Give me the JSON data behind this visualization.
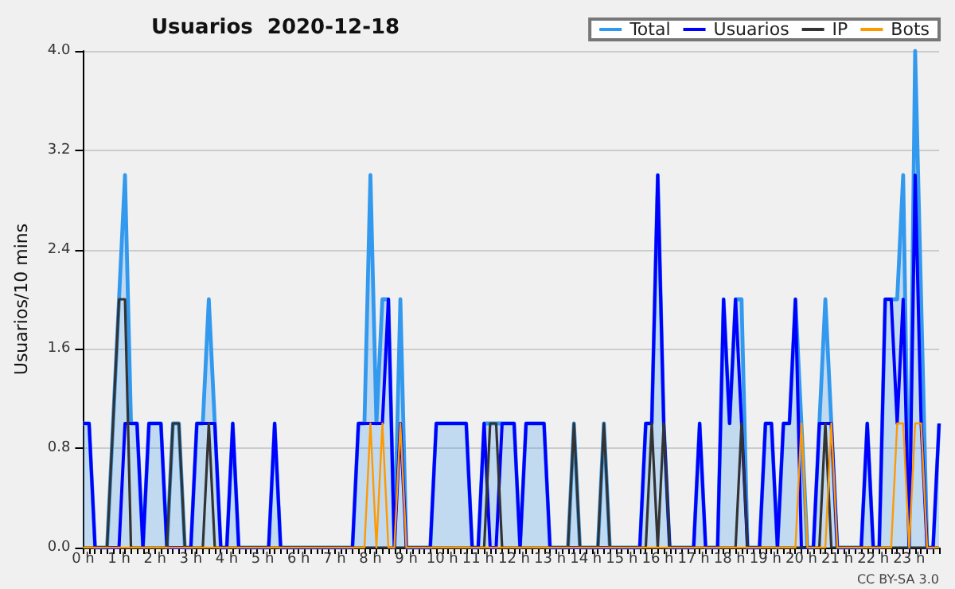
{
  "chart_data": {
    "type": "line",
    "title": "Usuarios  2020-12-18",
    "ylabel": "Usuarios/10 mins",
    "annotations": [
      "CC BY-SA 3.0"
    ],
    "categories": [
      "0 h",
      null,
      null,
      null,
      null,
      null,
      "1 h",
      null,
      null,
      null,
      null,
      null,
      "2 h",
      null,
      null,
      null,
      null,
      null,
      "3 h",
      null,
      null,
      null,
      null,
      null,
      "4 h",
      null,
      null,
      null,
      null,
      null,
      "5 h",
      null,
      null,
      null,
      null,
      null,
      "6 h",
      null,
      null,
      null,
      null,
      null,
      "7 h",
      null,
      null,
      null,
      null,
      null,
      "8 h",
      null,
      null,
      null,
      null,
      null,
      "9 h",
      null,
      null,
      null,
      null,
      null,
      "10 h",
      null,
      null,
      null,
      null,
      null,
      "11 h",
      null,
      null,
      null,
      null,
      null,
      "12 h",
      null,
      null,
      null,
      null,
      null,
      "13 h",
      null,
      null,
      null,
      null,
      null,
      "14 h",
      null,
      null,
      null,
      null,
      null,
      "15 h",
      null,
      null,
      null,
      null,
      null,
      "16 h",
      null,
      null,
      null,
      null,
      null,
      "17 h",
      null,
      null,
      null,
      null,
      null,
      "18 h",
      null,
      null,
      null,
      null,
      null,
      "19 h",
      null,
      null,
      null,
      null,
      null,
      "20 h",
      null,
      null,
      null,
      null,
      null,
      "21 h",
      null,
      null,
      null,
      null,
      null,
      "22 h",
      null,
      null,
      null,
      null,
      null,
      "23 h",
      null,
      null,
      null,
      null,
      null
    ],
    "series": [
      {
        "name": "Total",
        "type": "area",
        "color": "#3399ee",
        "values": [
          1,
          1,
          0,
          0,
          0,
          1,
          2,
          3,
          1,
          1,
          0,
          1,
          1,
          1,
          0,
          1,
          1,
          0,
          0,
          1,
          1,
          2,
          1,
          0,
          0,
          1,
          0,
          0,
          0,
          0,
          0,
          0,
          1,
          0,
          0,
          0,
          0,
          0,
          0,
          0,
          0,
          0,
          0,
          0,
          0,
          0,
          1,
          1,
          3,
          1,
          2,
          2,
          0,
          2,
          0,
          0,
          0,
          0,
          0,
          1,
          1,
          1,
          1,
          1,
          1,
          0,
          0,
          1,
          1,
          1,
          1,
          1,
          1,
          0,
          1,
          1,
          1,
          1,
          0,
          0,
          0,
          0,
          1,
          0,
          0,
          0,
          0,
          1,
          0,
          0,
          0,
          0,
          0,
          0,
          1,
          1,
          3,
          1,
          0,
          0,
          0,
          0,
          0,
          1,
          0,
          0,
          0,
          2,
          1,
          2,
          2,
          0,
          0,
          0,
          1,
          1,
          0,
          1,
          1,
          2,
          1,
          0,
          0,
          1,
          2,
          1,
          0,
          0,
          0,
          0,
          0,
          1,
          0,
          0,
          2,
          2,
          2,
          3,
          0,
          4,
          2,
          0,
          0,
          1
        ]
      },
      {
        "name": "Usuarios",
        "type": "line",
        "color": "#0000ff",
        "values": [
          1,
          1,
          0,
          0,
          0,
          0,
          0,
          1,
          1,
          1,
          0,
          1,
          1,
          1,
          0,
          0,
          0,
          0,
          0,
          1,
          1,
          1,
          1,
          0,
          0,
          1,
          0,
          0,
          0,
          0,
          0,
          0,
          1,
          0,
          0,
          0,
          0,
          0,
          0,
          0,
          0,
          0,
          0,
          0,
          0,
          0,
          1,
          1,
          1,
          1,
          1,
          2,
          0,
          1,
          0,
          0,
          0,
          0,
          0,
          1,
          1,
          1,
          1,
          1,
          1,
          0,
          0,
          1,
          0,
          0,
          1,
          1,
          1,
          0,
          1,
          1,
          1,
          1,
          0,
          0,
          0,
          0,
          0,
          0,
          0,
          0,
          0,
          0,
          0,
          0,
          0,
          0,
          0,
          0,
          1,
          1,
          3,
          1,
          0,
          0,
          0,
          0,
          0,
          1,
          0,
          0,
          0,
          2,
          1,
          2,
          1,
          0,
          0,
          0,
          1,
          1,
          0,
          1,
          1,
          2,
          0,
          0,
          0,
          1,
          1,
          1,
          0,
          0,
          0,
          0,
          0,
          1,
          0,
          0,
          2,
          2,
          1,
          2,
          0,
          3,
          1,
          0,
          0,
          1
        ]
      },
      {
        "name": "IP",
        "type": "line",
        "color": "#333333",
        "values": [
          0,
          0,
          0,
          0,
          0,
          1,
          2,
          2,
          0,
          0,
          0,
          0,
          0,
          0,
          0,
          1,
          1,
          0,
          0,
          0,
          0,
          1,
          0,
          0,
          0,
          0,
          0,
          0,
          0,
          0,
          0,
          0,
          0,
          0,
          0,
          0,
          0,
          0,
          0,
          0,
          0,
          0,
          0,
          0,
          0,
          0,
          0,
          0,
          0,
          0,
          0,
          0,
          0,
          0,
          0,
          0,
          0,
          0,
          0,
          0,
          0,
          0,
          0,
          0,
          0,
          0,
          0,
          0,
          1,
          1,
          0,
          0,
          0,
          0,
          0,
          0,
          0,
          0,
          0,
          0,
          0,
          0,
          1,
          0,
          0,
          0,
          0,
          1,
          0,
          0,
          0,
          0,
          0,
          0,
          0,
          1,
          0,
          1,
          0,
          0,
          0,
          0,
          0,
          0,
          0,
          0,
          0,
          0,
          0,
          0,
          1,
          0,
          0,
          0,
          0,
          0,
          0,
          0,
          0,
          0,
          0,
          0,
          0,
          0,
          1,
          0,
          0,
          0,
          0,
          0,
          0,
          0,
          0,
          0,
          0,
          0,
          0,
          0,
          0,
          0,
          0,
          0,
          0,
          0
        ]
      },
      {
        "name": "Bots",
        "type": "line",
        "color": "#ff9900",
        "values": [
          0,
          0,
          0,
          0,
          0,
          0,
          0,
          0,
          0,
          0,
          0,
          0,
          0,
          0,
          0,
          0,
          0,
          0,
          0,
          0,
          0,
          0,
          0,
          0,
          0,
          0,
          0,
          0,
          0,
          0,
          0,
          0,
          0,
          0,
          0,
          0,
          0,
          0,
          0,
          0,
          0,
          0,
          0,
          0,
          0,
          0,
          0,
          0,
          1,
          0,
          1,
          0,
          0,
          1,
          0,
          0,
          0,
          0,
          0,
          0,
          0,
          0,
          0,
          0,
          0,
          0,
          0,
          0,
          0,
          0,
          0,
          0,
          0,
          0,
          0,
          0,
          0,
          0,
          0,
          0,
          0,
          0,
          0,
          0,
          0,
          0,
          0,
          0,
          0,
          0,
          0,
          0,
          0,
          0,
          0,
          0,
          0,
          0,
          0,
          0,
          0,
          0,
          0,
          0,
          0,
          0,
          0,
          0,
          0,
          0,
          0,
          0,
          0,
          0,
          0,
          0,
          0,
          0,
          0,
          0,
          1,
          0,
          0,
          0,
          0,
          1,
          0,
          0,
          0,
          0,
          0,
          0,
          0,
          0,
          0,
          0,
          1,
          1,
          0,
          1,
          1,
          0,
          0,
          0
        ]
      }
    ],
    "ylim": [
      0,
      4
    ],
    "yticks": [
      {
        "value": 0,
        "label": "0.0"
      },
      {
        "value": 0.8,
        "label": "0.8"
      },
      {
        "value": 1.6,
        "label": "1.6"
      },
      {
        "value": 2.4,
        "label": "2.4"
      },
      {
        "value": 3.2,
        "label": "3.2"
      },
      {
        "value": 4,
        "label": "4.0"
      }
    ],
    "grid": "y",
    "legend": "top right"
  }
}
